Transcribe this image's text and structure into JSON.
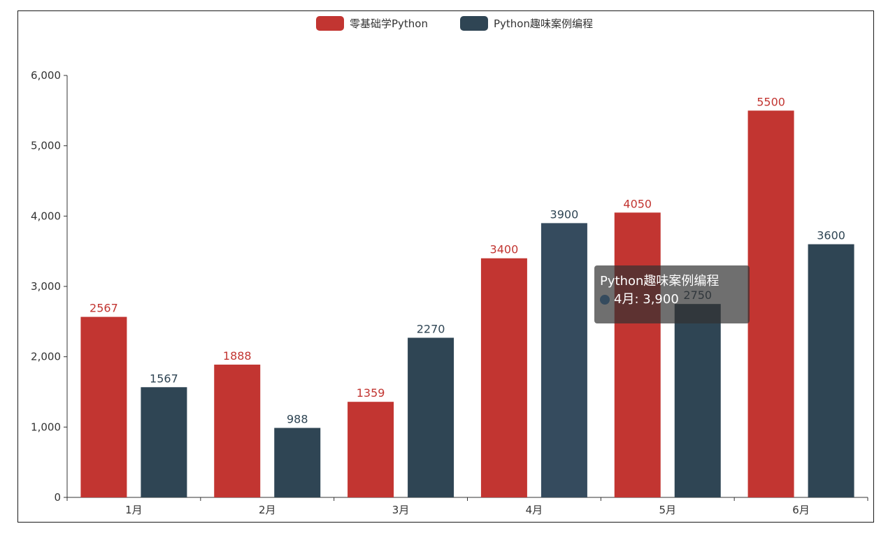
{
  "colors": {
    "series_a": "#c23531",
    "series_b": "#2f4554",
    "series_b_emphasis": "#354b5e",
    "axis": "#333333",
    "frame": "#1a1a1a"
  },
  "chart_data": {
    "type": "bar",
    "categories": [
      "1月",
      "2月",
      "3月",
      "4月",
      "5月",
      "6月"
    ],
    "series": [
      {
        "name": "零基础学Python",
        "values": [
          2567,
          1888,
          1359,
          3400,
          4050,
          5500
        ]
      },
      {
        "name": "Python趣味案例编程",
        "values": [
          1567,
          988,
          2270,
          3900,
          2750,
          3600
        ]
      }
    ],
    "ylim": [
      0,
      6000
    ],
    "yticks": [
      0,
      1000,
      2000,
      3000,
      4000,
      5000,
      6000
    ],
    "ytick_labels": [
      "0",
      "1,000",
      "2,000",
      "3,000",
      "4,000",
      "5,000",
      "6,000"
    ],
    "legend_position": "top-center",
    "grid": false,
    "title": "",
    "xlabel": "",
    "ylabel": ""
  },
  "tooltip": {
    "title": "Python趣味案例编程",
    "text": "4月: 3,900"
  }
}
